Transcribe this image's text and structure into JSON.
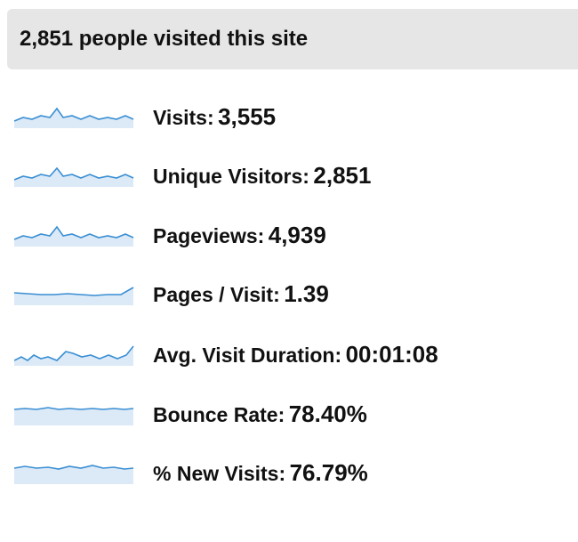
{
  "header": {
    "title": "2,851 people visited this site"
  },
  "metrics": [
    {
      "label": "Visits:",
      "value": "3,555"
    },
    {
      "label": "Unique Visitors:",
      "value": "2,851"
    },
    {
      "label": "Pageviews:",
      "value": "4,939"
    },
    {
      "label": "Pages / Visit:",
      "value": "1.39"
    },
    {
      "label": "Avg. Visit Duration:",
      "value": "00:01:08"
    },
    {
      "label": "Bounce Rate:",
      "value": "78.40%"
    },
    {
      "label": "% New Visits:",
      "value": "76.79%"
    }
  ]
}
